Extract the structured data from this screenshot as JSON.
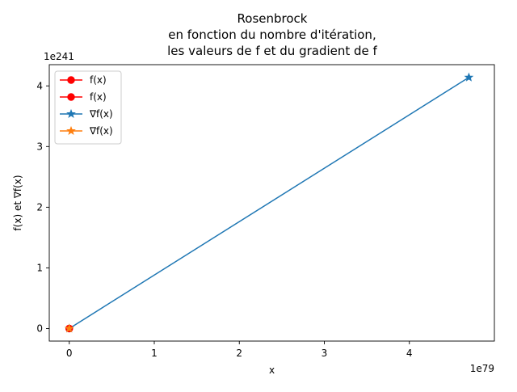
{
  "chart_data": {
    "type": "line",
    "title": [
      "Rosenbrock",
      "en fonction du nombre d'itération,",
      "les valeurs de f et du gradient de f"
    ],
    "xlabel": "x",
    "ylabel": "f(x) et ∇f(x)",
    "x_offset_text": "1e79",
    "y_offset_text": "1e241",
    "x_scale_factor": 1e+79,
    "y_scale_factor": 1e+241,
    "xlim": [
      -0.235,
      5.0
    ],
    "ylim": [
      -0.207,
      4.35
    ],
    "x_ticks": [
      0,
      1,
      2,
      3,
      4
    ],
    "y_ticks": [
      0,
      1,
      2,
      3,
      4
    ],
    "x_tick_labels": [
      "0",
      "1",
      "2",
      "3",
      "4"
    ],
    "y_tick_labels": [
      "0",
      "1",
      "2",
      "3",
      "4"
    ],
    "grid": false,
    "legend_position": "upper-left",
    "series": [
      {
        "name": "f(x)",
        "color": "#ff0000",
        "marker": "circle",
        "x": [
          0
        ],
        "y": [
          0
        ]
      },
      {
        "name": "f(x)",
        "color": "#ff0000",
        "marker": "circle",
        "x": [
          0
        ],
        "y": [
          0
        ]
      },
      {
        "name": "∇f(x)",
        "color": "#1f77b4",
        "marker": "star",
        "x": [
          0,
          4.7
        ],
        "y": [
          0,
          4.14
        ]
      },
      {
        "name": "∇f(x)",
        "color": "#ff7f0e",
        "marker": "star",
        "x": [
          0
        ],
        "y": [
          0
        ]
      }
    ]
  }
}
